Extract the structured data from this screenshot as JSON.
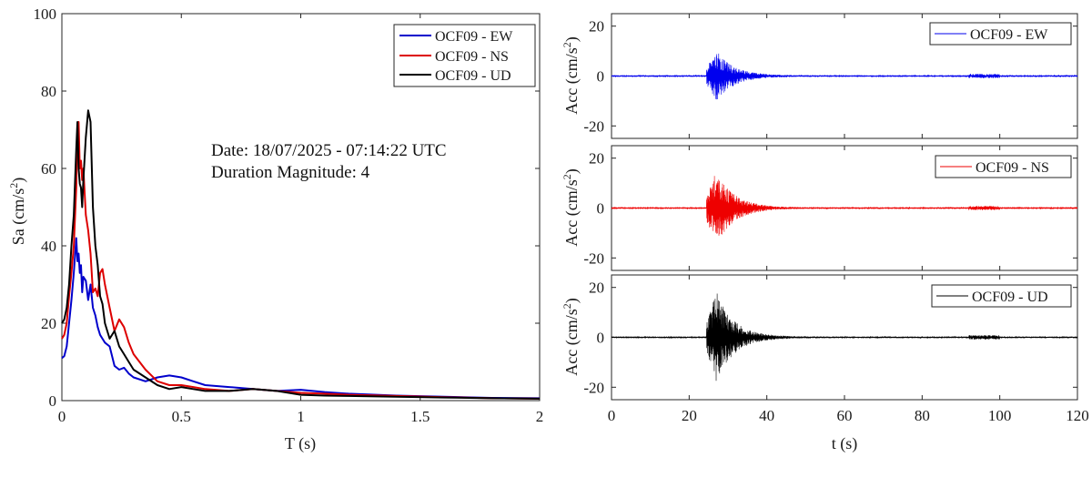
{
  "chart_data": [
    {
      "type": "line",
      "id": "spectrum",
      "xlabel": "T (s)",
      "ylabel_main": "Sa (cm/s",
      "ylabel_sup": "2",
      "ylabel_tail": ")",
      "xlim": [
        0,
        2
      ],
      "ylim": [
        0,
        100
      ],
      "xticks": [
        0,
        0.5,
        1,
        1.5,
        2
      ],
      "xtick_labels": [
        "0",
        "0.5",
        "1",
        "1.5",
        "2"
      ],
      "yticks": [
        0,
        20,
        40,
        60,
        80,
        100
      ],
      "ytick_labels": [
        "0",
        "20",
        "40",
        "60",
        "80",
        "100"
      ],
      "legend_position": "top-right",
      "annotations": [
        "Date: 18/07/2025 - 07:14:22 UTC",
        "Duration Magnitude: 4"
      ],
      "series": [
        {
          "name": "OCF09 - EW",
          "color": "#0000cc",
          "x": [
            0,
            0.01,
            0.02,
            0.03,
            0.04,
            0.05,
            0.06,
            0.065,
            0.07,
            0.075,
            0.08,
            0.085,
            0.09,
            0.1,
            0.11,
            0.12,
            0.13,
            0.14,
            0.15,
            0.16,
            0.17,
            0.18,
            0.2,
            0.22,
            0.24,
            0.26,
            0.28,
            0.3,
            0.35,
            0.4,
            0.45,
            0.5,
            0.55,
            0.6,
            0.7,
            0.8,
            0.9,
            1.0,
            1.1,
            1.2,
            1.4,
            1.6,
            1.8,
            2.0
          ],
          "values": [
            11,
            11.5,
            14,
            20,
            26,
            33,
            42,
            36,
            38,
            33,
            35,
            28,
            32,
            31,
            26,
            30,
            24,
            22,
            19,
            17,
            16,
            15,
            14,
            9,
            8,
            8.5,
            7,
            6,
            5,
            6,
            6.5,
            6,
            5,
            4,
            3.5,
            3,
            2.5,
            2.8,
            2.2,
            1.8,
            1.3,
            1.0,
            0.7,
            0.6
          ]
        },
        {
          "name": "OCF09 - NS",
          "color": "#dd0000",
          "x": [
            0,
            0.01,
            0.02,
            0.03,
            0.04,
            0.05,
            0.06,
            0.065,
            0.07,
            0.075,
            0.08,
            0.085,
            0.09,
            0.1,
            0.11,
            0.12,
            0.13,
            0.14,
            0.15,
            0.16,
            0.17,
            0.18,
            0.2,
            0.22,
            0.24,
            0.26,
            0.28,
            0.3,
            0.35,
            0.4,
            0.45,
            0.5,
            0.55,
            0.6,
            0.7,
            0.8,
            0.9,
            1.0,
            1.1,
            1.2,
            1.4,
            1.6,
            1.8,
            2.0
          ],
          "values": [
            16,
            17,
            20,
            27,
            33,
            40,
            55,
            70,
            72,
            60,
            62,
            57,
            60,
            48,
            44,
            38,
            28,
            29,
            27,
            33,
            34,
            30,
            24,
            18,
            21,
            19,
            15,
            12,
            8,
            5,
            4,
            4,
            3.5,
            3,
            2.5,
            3,
            2.5,
            2,
            1.8,
            1.5,
            1.2,
            0.9,
            0.6,
            0.5
          ]
        },
        {
          "name": "OCF09 - UD",
          "color": "#000000",
          "x": [
            0,
            0.01,
            0.02,
            0.03,
            0.04,
            0.05,
            0.06,
            0.065,
            0.07,
            0.075,
            0.08,
            0.085,
            0.09,
            0.1,
            0.11,
            0.12,
            0.13,
            0.14,
            0.15,
            0.16,
            0.17,
            0.18,
            0.2,
            0.22,
            0.24,
            0.26,
            0.28,
            0.3,
            0.35,
            0.4,
            0.45,
            0.5,
            0.55,
            0.6,
            0.7,
            0.8,
            0.9,
            1.0,
            1.1,
            1.2,
            1.4,
            1.6,
            1.8,
            2.0
          ],
          "values": [
            20,
            21,
            24,
            30,
            40,
            48,
            65,
            72,
            60,
            56,
            55,
            50,
            57,
            68,
            75,
            72,
            50,
            40,
            35,
            27,
            25,
            20,
            16,
            18,
            14,
            12,
            10,
            8,
            6,
            4,
            3,
            3.5,
            3,
            2.5,
            2.5,
            3,
            2.5,
            1.5,
            1.3,
            1.2,
            1.0,
            0.8,
            0.6,
            0.5
          ]
        }
      ]
    },
    {
      "type": "line",
      "id": "acc-ew",
      "name": "OCF09 - EW",
      "color": "#0000ee",
      "ylabel_main": "Acc (cm/s",
      "ylabel_sup": "2",
      "ylabel_tail": ")",
      "xlim": [
        0,
        120
      ],
      "ylim": [
        -25,
        25
      ],
      "yticks": [
        -20,
        0,
        20
      ],
      "ytick_labels": [
        "-20",
        "0",
        "20"
      ],
      "xticks": [
        0,
        20,
        40,
        60,
        80,
        100,
        120
      ],
      "onset_s": 24.5,
      "peak_amplitude": 10,
      "decay_s": 4.5,
      "noise_amplitude": 0.25,
      "legend_position": "top-right"
    },
    {
      "type": "line",
      "id": "acc-ns",
      "name": "OCF09 - NS",
      "color": "#ee0000",
      "ylabel_main": "Acc (cm/s",
      "ylabel_sup": "2",
      "ylabel_tail": ")",
      "xlim": [
        0,
        120
      ],
      "ylim": [
        -25,
        25
      ],
      "yticks": [
        -20,
        0,
        20
      ],
      "ytick_labels": [
        "-20",
        "0",
        "20"
      ],
      "xticks": [
        0,
        20,
        40,
        60,
        80,
        100,
        120
      ],
      "onset_s": 24.5,
      "peak_amplitude": 15,
      "decay_s": 4.5,
      "noise_amplitude": 0.25,
      "legend_position": "top-right"
    },
    {
      "type": "line",
      "id": "acc-ud",
      "name": "OCF09 - UD",
      "color": "#000000",
      "ylabel_main": "Acc (cm/s",
      "ylabel_sup": "2",
      "ylabel_tail": ")",
      "xlabel": "t (s)",
      "xlim": [
        0,
        120
      ],
      "ylim": [
        -25,
        25
      ],
      "yticks": [
        -20,
        0,
        20
      ],
      "ytick_labels": [
        "-20",
        "0",
        "20"
      ],
      "xticks": [
        0,
        20,
        40,
        60,
        80,
        100,
        120
      ],
      "xtick_labels": [
        "0",
        "20",
        "40",
        "60",
        "80",
        "100",
        "120"
      ],
      "onset_s": 24.5,
      "peak_amplitude": 18,
      "decay_s": 4.5,
      "noise_amplitude": 0.3,
      "legend_position": "top-right"
    }
  ]
}
